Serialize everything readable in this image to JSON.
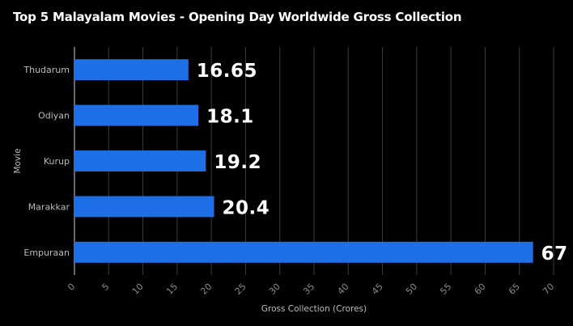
{
  "chart_data": {
    "type": "bar",
    "orientation": "horizontal",
    "title": "Top 5 Malayalam Movies - Opening Day Worldwide Gross Collection",
    "xlabel": "Gross Collection (Crores)",
    "ylabel": "Movie",
    "categories": [
      "Thudarum",
      "Odiyan",
      "Kurup",
      "Marakkar",
      "Empuraan"
    ],
    "values": [
      16.65,
      18.1,
      19.2,
      20.4,
      67
    ],
    "data_labels": [
      "16.65",
      "18.1",
      "19.2",
      "20.4",
      "67"
    ],
    "xlim": [
      0,
      70
    ],
    "xticks": [
      0,
      5,
      10,
      15,
      20,
      25,
      30,
      35,
      40,
      45,
      50,
      55,
      60,
      65,
      70
    ],
    "grid": true,
    "colors": {
      "bar": "#1e6fe6",
      "background": "#000000",
      "grid": "#3a3a3a"
    }
  }
}
